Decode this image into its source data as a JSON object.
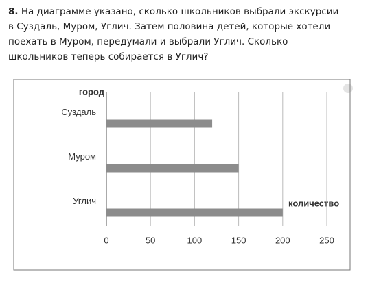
{
  "question": {
    "number": "8.",
    "lines": [
      "На диаграмме указано, сколько школьников выбрали экскурсии",
      "в Суздаль, Муром, Углич. Затем половина детей, которые хотели",
      "поехать в Муром, передумали и выбрали Углич. Сколько",
      "школьников теперь собирается в Углич?"
    ]
  },
  "chart_data": {
    "type": "hbar",
    "y_label": "город",
    "x_label": "количество",
    "categories": [
      "Суздаль",
      "Муром",
      "Углич"
    ],
    "values": [
      120,
      150,
      200
    ],
    "color": "#8c8c8c",
    "xlim": [
      0,
      250
    ],
    "xticks": [
      0,
      50,
      100,
      150,
      200,
      250
    ],
    "grid": true
  }
}
